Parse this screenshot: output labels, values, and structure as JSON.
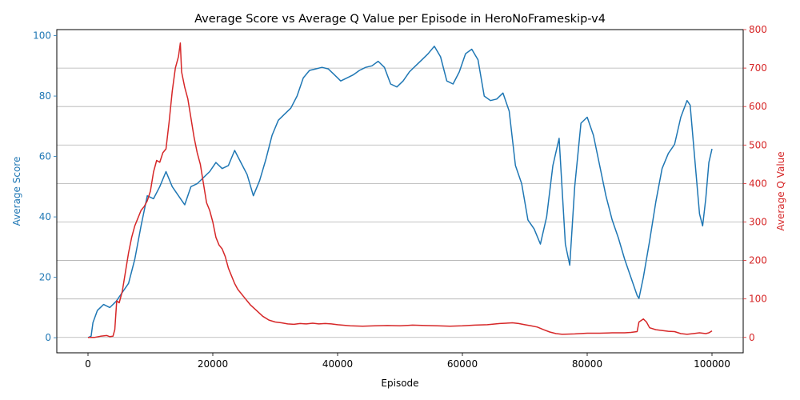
{
  "chart_data": {
    "type": "line",
    "title": "Average Score vs Average Q Value per Episode in HeroNoFrameskip-v4",
    "xlabel": "Episode",
    "ylabel_left": "Average Score",
    "ylabel_right": "Average Q Value",
    "xlim": [
      -5000,
      105000
    ],
    "ylim_left": [
      -5,
      102
    ],
    "ylim_right": [
      -40,
      800
    ],
    "x_ticks": [
      0,
      20000,
      40000,
      60000,
      80000,
      100000
    ],
    "x_tick_labels": [
      "0",
      "20000",
      "40000",
      "60000",
      "80000",
      "100000"
    ],
    "y_left_ticks": [
      0,
      20,
      40,
      60,
      80,
      100
    ],
    "y_left_tick_labels": [
      "0",
      "20",
      "40",
      "60",
      "80",
      "100"
    ],
    "y_right_ticks": [
      0,
      100,
      200,
      300,
      400,
      500,
      600,
      700,
      800
    ],
    "y_right_tick_labels": [
      "0",
      "100",
      "200",
      "300",
      "400",
      "500",
      "600",
      "700",
      "800"
    ],
    "grid": "horizontal lines at right-axis ticks",
    "colors": {
      "score": "#1f77b4",
      "q": "#d62728",
      "grid": "#b0b0b0"
    },
    "series": [
      {
        "axis": "left",
        "color": "#1f77b4",
        "x": [
          0,
          500,
          800,
          1500,
          2500,
          3500,
          4500,
          5500,
          6500,
          7500,
          8500,
          9500,
          10500,
          11500,
          12500,
          13500,
          14500,
          15500,
          16500,
          17500,
          18500,
          19500,
          20500,
          21500,
          22500,
          23500,
          24500,
          25500,
          26500,
          27500,
          28500,
          29500,
          30500,
          31500,
          32500,
          33500,
          34500,
          35500,
          36500,
          37500,
          38500,
          39500,
          40500,
          41500,
          42500,
          43500,
          44500,
          45500,
          46500,
          47500,
          48500,
          49500,
          50500,
          51500,
          52500,
          53500,
          54500,
          55500,
          56500,
          57500,
          58500,
          59500,
          60500,
          61500,
          62500,
          63500,
          64500,
          65500,
          66500,
          67500,
          68500,
          69500,
          70500,
          71500,
          72500,
          73500,
          74500,
          75500,
          76500,
          77200,
          78000,
          79000,
          80000,
          81000,
          82000,
          83000,
          84000,
          85000,
          86000,
          87000,
          88000,
          88300,
          89000,
          90000,
          91000,
          92000,
          93000,
          94000,
          95000,
          96000,
          96500,
          97200,
          98000,
          98500,
          99000,
          99500,
          100000
        ],
        "y": [
          0,
          0.5,
          5,
          9,
          11,
          10,
          12,
          15,
          18,
          26,
          37,
          47,
          46,
          50,
          55,
          50,
          47,
          44,
          50,
          51,
          53,
          55,
          58,
          56,
          57,
          62,
          58,
          54,
          47,
          52,
          59,
          67,
          72,
          74,
          76,
          80,
          86,
          88.5,
          89,
          89.5,
          89,
          87,
          85,
          86,
          87,
          88.5,
          89.5,
          90,
          91.5,
          89.5,
          84,
          83,
          85,
          88,
          90,
          92,
          94,
          96.5,
          93,
          85,
          84,
          88,
          94,
          95.5,
          92,
          80,
          78.5,
          79,
          81,
          75,
          57,
          51,
          39,
          36,
          31,
          40,
          57,
          66,
          31,
          24,
          50,
          71,
          73,
          67,
          57,
          47,
          39,
          33,
          26,
          20,
          14,
          13,
          20,
          32,
          45,
          56,
          61,
          64,
          73,
          78.5,
          77,
          60,
          41,
          37,
          46,
          58,
          62.5
        ]
      },
      {
        "axis": "right",
        "color": "#d62728",
        "x": [
          0,
          1000,
          2000,
          3000,
          3500,
          4000,
          4300,
          4600,
          5000,
          5500,
          6000,
          6500,
          7000,
          7500,
          8000,
          8500,
          9000,
          9500,
          10000,
          10500,
          11000,
          11500,
          12000,
          12500,
          13000,
          13500,
          14000,
          14500,
          14800,
          15000,
          15500,
          16000,
          16500,
          17000,
          17500,
          18000,
          18500,
          19000,
          19500,
          20000,
          20500,
          21000,
          21500,
          22000,
          22500,
          23000,
          23500,
          24000,
          25000,
          26000,
          27000,
          28000,
          29000,
          30000,
          31000,
          32000,
          33000,
          34000,
          35000,
          36000,
          37000,
          38000,
          39000,
          40000,
          42000,
          44000,
          46000,
          48000,
          50000,
          52000,
          54000,
          56000,
          58000,
          60000,
          62000,
          64000,
          66000,
          67000,
          68000,
          69000,
          70000,
          71000,
          72000,
          73000,
          74000,
          75000,
          76000,
          78000,
          80000,
          82000,
          84000,
          86000,
          87000,
          88000,
          88300,
          89000,
          89500,
          90000,
          91000,
          92000,
          93000,
          94000,
          95000,
          96000,
          97000,
          98000,
          99000,
          99500,
          100000
        ],
        "y": [
          0,
          0,
          3,
          5,
          2,
          3,
          20,
          95,
          90,
          120,
          170,
          220,
          260,
          290,
          310,
          330,
          340,
          355,
          380,
          430,
          460,
          455,
          480,
          490,
          560,
          640,
          700,
          730,
          765,
          690,
          650,
          620,
          570,
          520,
          480,
          450,
          400,
          350,
          330,
          300,
          260,
          240,
          230,
          210,
          180,
          160,
          140,
          125,
          105,
          85,
          70,
          55,
          45,
          40,
          38,
          35,
          34,
          36,
          35,
          37,
          35,
          36,
          35,
          33,
          30,
          29,
          30,
          31,
          30,
          32,
          31,
          30,
          29,
          30,
          32,
          33,
          36,
          37,
          38,
          36,
          33,
          30,
          27,
          20,
          14,
          10,
          8,
          9,
          11,
          11,
          12,
          12,
          13,
          15,
          40,
          48,
          40,
          25,
          20,
          18,
          16,
          15,
          10,
          8,
          10,
          12,
          10,
          12,
          17
        ]
      }
    ]
  }
}
